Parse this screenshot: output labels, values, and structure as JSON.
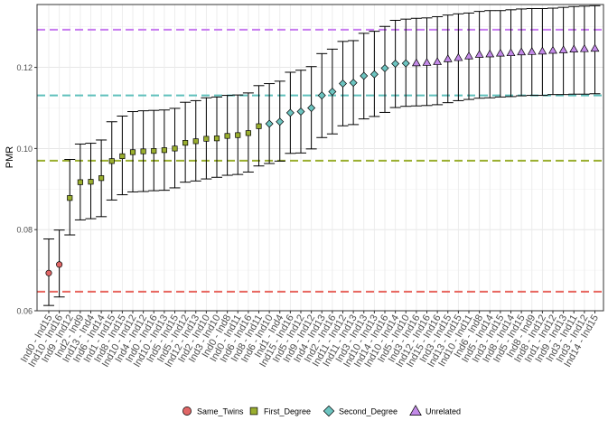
{
  "chart_data": {
    "type": "scatter",
    "title": "",
    "xlabel": "",
    "ylabel": "PMR",
    "ylim": [
      0.06,
      0.1355
    ],
    "yticks": [
      0.06,
      0.08,
      0.1,
      0.12
    ],
    "ytick_labels": [
      "0.06",
      "0.08",
      "0.10",
      "0.12"
    ],
    "grid": true,
    "legend_position": "bottom",
    "categories": [
      "Ind0 - Ind15",
      "Ind10 - Ind16",
      "Ind9 - Ind12",
      "Ind2 - Ind9",
      "Ind13 - Ind4",
      "Ind6 - Ind14",
      "Ind1 - Ind15",
      "Ind8 - Ind15",
      "Ind10 - Ind12",
      "Ind4 - Ind12",
      "Ind0 - Ind16",
      "Ind10 - Ind13",
      "Ind5 - Ind15",
      "Ind5 - Ind12",
      "Ind12 - Ind13",
      "Ind2 - Ind10",
      "Ind3 - Ind10",
      "Ind0 - Ind8",
      "Ind0 - Ind11",
      "Ind6 - Ind16",
      "Ind8 - Ind11",
      "Ind6 - Ind10",
      "Ind1 - Ind4",
      "Ind15 - Ind16",
      "Ind5 - Ind12",
      "Ind9 - Ind12",
      "Ind4 - Ind13",
      "Ind2 - Ind16",
      "Ind11 - Ind12",
      "Ind11 - Ind13",
      "Ind3 - Ind13",
      "Ind10 - Ind13",
      "Ind14 - Ind16",
      "Ind10 - Ind14",
      "Ind5 - Ind10",
      "Ind3 - Ind16",
      "Ind12 - Ind16",
      "Ind15 - Ind16",
      "Ind3 - Ind15",
      "Ind13 - Ind15",
      "Ind10 - Ind11",
      "Ind6 - Ind8",
      "Ind5 - Ind14",
      "Ind3 - Ind15",
      "Ind8 - Ind14",
      "Ind5 - Ind15",
      "Ind8 - Ind9",
      "Ind8 - Ind12",
      "Ind1 - Ind12",
      "Ind9 - Ind13",
      "Ind3 - Ind11",
      "Ind3 - Ind12",
      "Ind14 - Ind15"
    ],
    "groups": [
      "Same_Twins",
      "Same_Twins",
      "First_Degree",
      "First_Degree",
      "First_Degree",
      "First_Degree",
      "First_Degree",
      "First_Degree",
      "First_Degree",
      "First_Degree",
      "First_Degree",
      "First_Degree",
      "First_Degree",
      "First_Degree",
      "First_Degree",
      "First_Degree",
      "First_Degree",
      "First_Degree",
      "First_Degree",
      "First_Degree",
      "First_Degree",
      "Second_Degree",
      "Second_Degree",
      "Second_Degree",
      "Second_Degree",
      "Second_Degree",
      "Second_Degree",
      "Second_Degree",
      "Second_Degree",
      "Second_Degree",
      "Second_Degree",
      "Second_Degree",
      "Second_Degree",
      "Second_Degree",
      "Second_Degree",
      "Unrelated",
      "Unrelated",
      "Unrelated",
      "Unrelated",
      "Unrelated",
      "Unrelated",
      "Unrelated",
      "Unrelated",
      "Unrelated",
      "Unrelated",
      "Unrelated",
      "Unrelated",
      "Unrelated",
      "Unrelated",
      "Unrelated",
      "Unrelated",
      "Unrelated",
      "Unrelated"
    ],
    "values": [
      0.0693,
      0.0714,
      0.0878,
      0.0917,
      0.0918,
      0.0927,
      0.0969,
      0.0981,
      0.0991,
      0.0993,
      0.0994,
      0.0996,
      0.1,
      0.1014,
      0.1018,
      0.1024,
      0.1025,
      0.1031,
      0.1033,
      0.1038,
      0.1055,
      0.1061,
      0.1066,
      0.1088,
      0.1091,
      0.11,
      0.1131,
      0.114,
      0.116,
      0.1162,
      0.1179,
      0.1183,
      0.1198,
      0.1209,
      0.121,
      0.1211,
      0.1212,
      0.1214,
      0.1221,
      0.1224,
      0.1228,
      0.1232,
      0.1233,
      0.1235,
      0.1236,
      0.1238,
      0.1239,
      0.124,
      0.1242,
      0.1243,
      0.1245,
      0.1246,
      0.1247
    ],
    "lower": [
      0.0613,
      0.0634,
      0.0787,
      0.0824,
      0.0827,
      0.0832,
      0.0873,
      0.0886,
      0.0893,
      0.0894,
      0.0896,
      0.0897,
      0.0903,
      0.0917,
      0.092,
      0.0925,
      0.0929,
      0.0934,
      0.0936,
      0.0942,
      0.0957,
      0.0963,
      0.0969,
      0.0988,
      0.0989,
      0.0999,
      0.1027,
      0.1036,
      0.1056,
      0.1059,
      0.1073,
      0.1079,
      0.1089,
      0.1101,
      0.1104,
      0.1105,
      0.1106,
      0.1108,
      0.1113,
      0.1118,
      0.1121,
      0.1124,
      0.1125,
      0.1127,
      0.1128,
      0.113,
      0.1131,
      0.1131,
      0.1133,
      0.1133,
      0.1134,
      0.1134,
      0.1135
    ],
    "upper": [
      0.0777,
      0.0799,
      0.0973,
      0.1011,
      0.1013,
      0.1021,
      0.1066,
      0.108,
      0.1091,
      0.1093,
      0.1094,
      0.1095,
      0.1099,
      0.1114,
      0.1118,
      0.1125,
      0.1127,
      0.1131,
      0.1132,
      0.1137,
      0.1155,
      0.116,
      0.1166,
      0.1188,
      0.1193,
      0.1202,
      0.1234,
      0.1245,
      0.1264,
      0.1266,
      0.1284,
      0.1289,
      0.1301,
      0.1316,
      0.1319,
      0.1321,
      0.1322,
      0.1325,
      0.1329,
      0.1332,
      0.1334,
      0.1338,
      0.134,
      0.134,
      0.1342,
      0.1344,
      0.1345,
      0.1345,
      0.1346,
      0.1348,
      0.135,
      0.1351,
      0.1352
    ],
    "reference_lines": [
      {
        "group": "Same_Twins",
        "y": 0.0647
      },
      {
        "group": "First_Degree",
        "y": 0.097
      },
      {
        "group": "Second_Degree",
        "y": 0.1131
      },
      {
        "group": "Unrelated",
        "y": 0.1293
      }
    ],
    "legend": [
      {
        "label": "Same_Twins",
        "shape": "circle",
        "fill": "#e06666",
        "line": "#e8665e"
      },
      {
        "label": "First_Degree",
        "shape": "square",
        "fill": "#9aae2f",
        "line": "#9aae2f"
      },
      {
        "label": "Second_Degree",
        "shape": "diamond",
        "fill": "#6cc4c0",
        "line": "#5fc0bc"
      },
      {
        "label": "Unrelated",
        "shape": "triangle",
        "fill": "#c38ae8",
        "line": "#c77cf0"
      }
    ]
  }
}
